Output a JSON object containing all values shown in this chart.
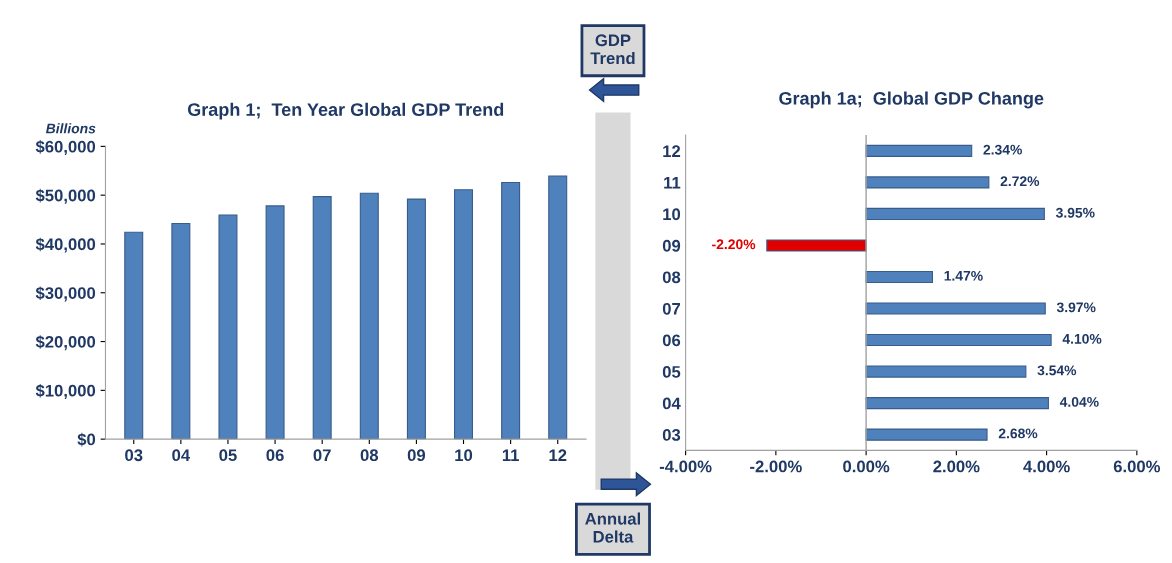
{
  "chart_data": [
    {
      "type": "bar",
      "title": "Graph 1;  Ten Year Global GDP Trend",
      "ylabel": "Billions",
      "categories": [
        "03",
        "04",
        "05",
        "06",
        "07",
        "08",
        "09",
        "10",
        "11",
        "12"
      ],
      "values": [
        42400,
        44200,
        45900,
        47800,
        49700,
        50400,
        49200,
        51100,
        52600,
        53900
      ],
      "color": "#4f81bd",
      "ylim": [
        0,
        60000
      ],
      "yticks": [
        {
          "value": 0,
          "label": "$0"
        },
        {
          "value": 10000,
          "label": "$10,000"
        },
        {
          "value": 20000,
          "label": "$20,000"
        },
        {
          "value": 30000,
          "label": "$30,000"
        },
        {
          "value": 40000,
          "label": "$40,000"
        },
        {
          "value": 50000,
          "label": "$50,000"
        },
        {
          "value": 60000,
          "label": "$60,000"
        }
      ],
      "annotations": [
        "GDP Trend"
      ]
    },
    {
      "type": "bar",
      "orientation": "horizontal",
      "title": "Graph 1a;  Global GDP Change",
      "categories": [
        "12",
        "11",
        "10",
        "09",
        "08",
        "07",
        "06",
        "05",
        "04",
        "03"
      ],
      "values": [
        2.34,
        2.72,
        3.95,
        -2.2,
        1.47,
        3.97,
        4.1,
        3.54,
        4.04,
        2.68
      ],
      "colors": [
        "#4f81bd",
        "#4f81bd",
        "#4f81bd",
        "#e00000",
        "#4f81bd",
        "#4f81bd",
        "#4f81bd",
        "#4f81bd",
        "#4f81bd",
        "#4f81bd"
      ],
      "value_labels": [
        "2.34%",
        "2.72%",
        "3.95%",
        "-2.20%",
        "1.47%",
        "3.97%",
        "4.10%",
        "3.54%",
        "4.04%",
        "2.68%"
      ],
      "xlim": [
        -4,
        6
      ],
      "xticks": [
        {
          "value": -4,
          "label": "-4.00%"
        },
        {
          "value": -2,
          "label": "-2.00%"
        },
        {
          "value": 0,
          "label": "0.00%"
        },
        {
          "value": 2,
          "label": "2.00%"
        },
        {
          "value": 4,
          "label": "4.00%"
        },
        {
          "value": 6,
          "label": "6.00%"
        }
      ],
      "annotations": [
        "Annual Delta"
      ]
    }
  ]
}
